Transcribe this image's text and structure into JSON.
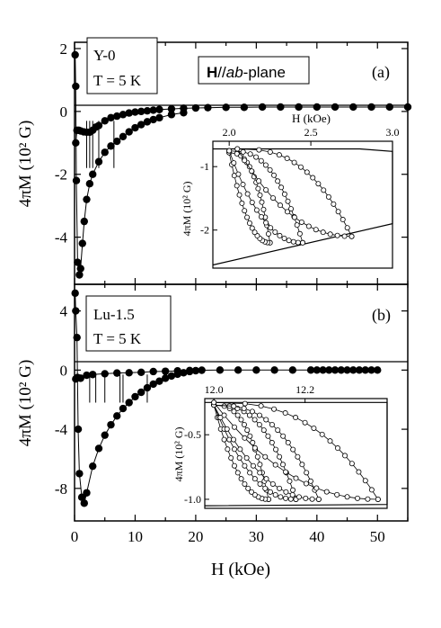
{
  "figure": {
    "xlabel": "H (kOe)",
    "ylabel": "4πM (10² G)",
    "x_ticks": [
      "0",
      "10",
      "20",
      "30",
      "40",
      "50"
    ]
  },
  "chart_data": [
    {
      "id": "panel-a",
      "type": "line",
      "panel_label": "(a)",
      "sample_label": "Y-0",
      "temp_label": "T = 5 K",
      "field_label_bold": "H",
      "field_label_mid": "//",
      "field_label_italic": "ab",
      "field_label_tail": "-plane",
      "xlabel": "H (kOe)",
      "ylabel": "4πM (10² G)",
      "xlim": [
        0,
        55
      ],
      "ylim": [
        -5.5,
        2.2
      ],
      "yticks": [
        2,
        0,
        -2,
        -4
      ],
      "ytick_labels": [
        "2",
        "0",
        "-2",
        "-4"
      ],
      "series": [
        {
          "role": "virgin-and-upper-branch",
          "x": [
            0.2,
            0.4,
            0.7,
            1.0,
            1.5,
            2.0,
            2.5,
            3.0,
            3.5,
            4.0,
            5.0,
            6.0,
            7.0,
            8.0,
            9.0,
            10,
            11,
            12,
            13,
            14,
            16,
            18,
            20,
            22,
            25,
            28,
            31,
            34,
            37,
            40,
            43,
            46,
            49,
            52,
            55
          ],
          "y": [
            -1.0,
            -0.6,
            -0.6,
            -0.62,
            -0.65,
            -0.66,
            -0.66,
            -0.6,
            -0.5,
            -0.45,
            -0.3,
            -0.2,
            -0.15,
            -0.1,
            -0.05,
            -0.02,
            0.0,
            0.02,
            0.04,
            0.06,
            0.08,
            0.1,
            0.11,
            0.12,
            0.13,
            0.13,
            0.14,
            0.14,
            0.14,
            0.14,
            0.14,
            0.14,
            0.14,
            0.14,
            0.14
          ]
        },
        {
          "role": "return-branch",
          "x": [
            0.1,
            0.2,
            0.3,
            0.5,
            0.8,
            1.0,
            1.3,
            1.6,
            2.0,
            2.5,
            3.0,
            4.0,
            5.0,
            6.0,
            7.0,
            8.0,
            9.0,
            10,
            11,
            12,
            13,
            14,
            16,
            18
          ],
          "y": [
            1.8,
            0.8,
            -2.2,
            -4.8,
            -5.2,
            -5.0,
            -4.2,
            -3.5,
            -2.8,
            -2.3,
            -2.0,
            -1.6,
            -1.3,
            -1.1,
            -0.95,
            -0.8,
            -0.65,
            -0.52,
            -0.42,
            -0.33,
            -0.26,
            -0.2,
            -0.1,
            -0.04
          ]
        }
      ],
      "jumps_x": [
        2.0,
        2.5,
        3.0,
        4.0,
        6.5
      ],
      "inset": {
        "xlabel": "H (kOe)",
        "ylabel": "4πM (10² G)",
        "xlim": [
          1.9,
          3.0
        ],
        "ylim": [
          -2.6,
          -0.6
        ],
        "xticks": [
          2.0,
          2.5,
          3.0
        ],
        "xtick_labels": [
          "2.0",
          "2.5",
          "3.0"
        ],
        "yticks": [
          -1,
          -2
        ],
        "ytick_labels": [
          "-1",
          "-2"
        ]
      }
    },
    {
      "id": "panel-b",
      "type": "line",
      "panel_label": "(b)",
      "sample_label": "Lu-1.5",
      "temp_label": "T = 5 K",
      "xlabel": "H (kOe)",
      "ylabel": "4πM (10² G)",
      "xlim": [
        0,
        55
      ],
      "ylim": [
        -10.2,
        5.8
      ],
      "yticks": [
        4,
        0,
        -4,
        -8
      ],
      "ytick_labels": [
        "4",
        "0",
        "-4",
        "-8"
      ],
      "series": [
        {
          "role": "virgin-and-upper-branch",
          "x": [
            0.2,
            0.5,
            1.0,
            2.0,
            3.0,
            5.0,
            7.0,
            9.0,
            11,
            13,
            15,
            17,
            19,
            21,
            24,
            27,
            30,
            33,
            36,
            39,
            40,
            41,
            42,
            43,
            44,
            45,
            46,
            47,
            48,
            49,
            50
          ],
          "y": [
            -0.6,
            -0.5,
            -0.55,
            -0.35,
            -0.3,
            -0.25,
            -0.2,
            -0.18,
            -0.15,
            -0.1,
            -0.08,
            -0.05,
            -0.03,
            -0.01,
            0.0,
            0.0,
            0.0,
            0.0,
            0.0,
            0.0,
            0.0,
            0.0,
            0.0,
            0.0,
            0.0,
            0.0,
            0.0,
            0.0,
            0.0,
            0.0,
            0.0
          ]
        },
        {
          "role": "return-branch",
          "x": [
            0.1,
            0.2,
            0.4,
            0.6,
            0.8,
            1.2,
            1.6,
            2.0,
            3.0,
            4.0,
            5.0,
            6.0,
            7.0,
            8.0,
            9.0,
            10,
            11,
            12,
            13,
            14,
            15,
            16,
            17,
            18,
            19,
            20
          ],
          "y": [
            5.2,
            4.0,
            2.2,
            -4.0,
            -7.0,
            -8.6,
            -9.0,
            -8.3,
            -6.5,
            -5.3,
            -4.4,
            -3.7,
            -3.1,
            -2.6,
            -2.2,
            -1.8,
            -1.5,
            -1.2,
            -0.95,
            -0.75,
            -0.55,
            -0.4,
            -0.28,
            -0.18,
            -0.1,
            -0.04
          ]
        }
      ],
      "jumps_x": [
        2.5,
        3.5,
        5.0,
        7.5,
        8.0,
        12.0
      ],
      "inset": {
        "xlabel": "",
        "ylabel": "4πM (10² G)",
        "xlim": [
          11.98,
          12.38
        ],
        "ylim": [
          -1.07,
          -0.22
        ],
        "xticks": [
          12.0,
          12.2
        ],
        "xtick_labels": [
          "12.0",
          "12.2"
        ],
        "yticks": [
          -0.5,
          -1.0
        ],
        "ytick_labels": [
          "-0.5",
          "-1.0"
        ]
      }
    }
  ]
}
